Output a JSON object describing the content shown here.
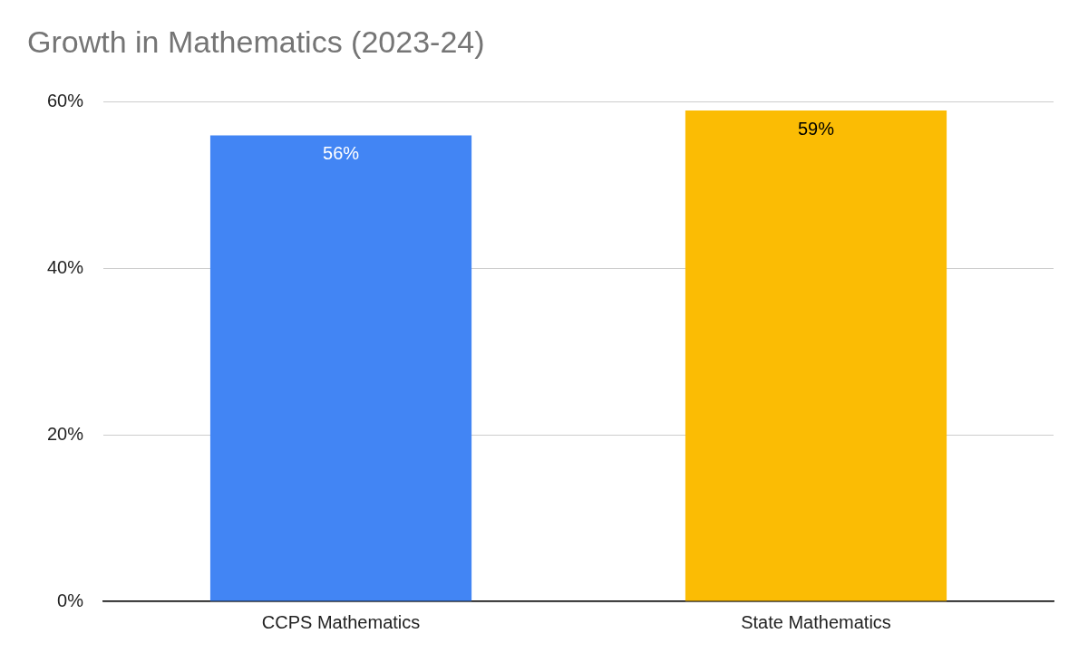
{
  "chart_data": {
    "type": "bar",
    "title": "Growth in Mathematics (2023-24)",
    "categories": [
      "CCPS Mathematics",
      "State Mathematics"
    ],
    "values": [
      56,
      59
    ],
    "value_labels": [
      "56%",
      "59%"
    ],
    "colors": [
      "#4285f4",
      "#fbbc04"
    ],
    "ylim": [
      0,
      60
    ],
    "yticks": [
      {
        "value": 0,
        "label": "0%"
      },
      {
        "value": 20,
        "label": "20%"
      },
      {
        "value": 40,
        "label": "40%"
      },
      {
        "value": 60,
        "label": "60%"
      }
    ],
    "grid": true,
    "data_labels": true
  }
}
